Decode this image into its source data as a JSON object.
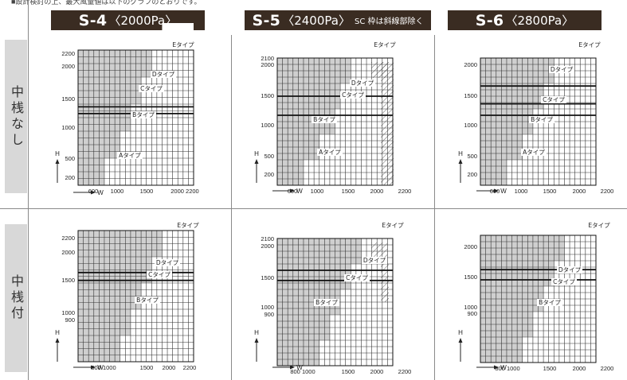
{
  "top_caption": "■設計検討の上、最大風量値は以下のグラフのとおりです。",
  "columns": [
    {
      "code": "S-4",
      "pa": "〈2000Pa〉",
      "note": ""
    },
    {
      "code": "S-5",
      "pa": "〈2400Pa〉",
      "note": "SC 枠は斜線部除く"
    },
    {
      "code": "S-6",
      "pa": "〈2800Pa〉",
      "note": ""
    }
  ],
  "rows": [
    "中桟なし",
    "中桟付"
  ],
  "colors": {
    "grid_fill": "#cfcfcf",
    "grid_line": "#333333",
    "header_bg": "#3a2c22",
    "label_bg": "#d8d8d8"
  },
  "chart_data": [
    {
      "id": "S-4 中桟なし",
      "type": "heatmap",
      "xlabel": "W",
      "ylabel": "H",
      "xticks": [
        "600",
        "1000",
        "1500",
        "2000 2200"
      ],
      "yticks": [
        "2200",
        "2000",
        "1500",
        "1000",
        "500",
        "200"
      ],
      "region_labels": [
        "Eタイプ",
        "Dタイプ",
        "Cタイプ",
        "Bタイプ",
        "Aタイプ"
      ]
    },
    {
      "id": "S-5 中桟なし",
      "type": "heatmap",
      "xlabel": "W",
      "ylabel": "H",
      "xticks": [
        "600",
        "1000",
        "1500",
        "2000",
        "2200"
      ],
      "yticks": [
        "2100",
        "2000",
        "1500",
        "1000",
        "500",
        "200"
      ],
      "region_labels": [
        "Eタイプ",
        "Dタイプ",
        "Cタイプ",
        "Bタイプ",
        "Aタイプ"
      ]
    },
    {
      "id": "S-6 中桟なし",
      "type": "heatmap",
      "xlabel": "W",
      "ylabel": "H",
      "xticks": [
        "600",
        "1000",
        "1500",
        "2000",
        "2200"
      ],
      "yticks": [
        "2000",
        "1500",
        "1000",
        "500",
        "200"
      ],
      "region_labels": [
        "Eタイプ",
        "Dタイプ",
        "Cタイプ",
        "Bタイプ",
        "Aタイプ"
      ]
    },
    {
      "id": "S-4 中桟付",
      "type": "heatmap",
      "xlabel": "W",
      "ylabel": "H",
      "xticks": [
        "800 1000",
        "1500",
        "2000",
        "2200"
      ],
      "yticks": [
        "2200",
        "2000",
        "1500",
        "1000",
        "900"
      ],
      "region_labels": [
        "Eタイプ",
        "Dタイプ",
        "Cタイプ",
        "Bタイプ"
      ]
    },
    {
      "id": "S-5 中桟付",
      "type": "heatmap",
      "xlabel": "W",
      "ylabel": "H",
      "xticks": [
        "800 1000",
        "1500",
        "2000",
        "2200"
      ],
      "yticks": [
        "2100",
        "2000",
        "1500",
        "1000",
        "900"
      ],
      "region_labels": [
        "Eタイプ",
        "Dタイプ",
        "Cタイプ",
        "Bタイプ"
      ]
    },
    {
      "id": "S-6 中桟付",
      "type": "heatmap",
      "xlabel": "W",
      "ylabel": "H",
      "xticks": [
        "800 1000",
        "1500",
        "2000",
        "2200"
      ],
      "yticks": [
        "2000",
        "1500",
        "1000",
        "900"
      ],
      "region_labels": [
        "Eタイプ",
        "Dタイプ",
        "Cタイプ",
        "Bタイプ"
      ]
    }
  ]
}
